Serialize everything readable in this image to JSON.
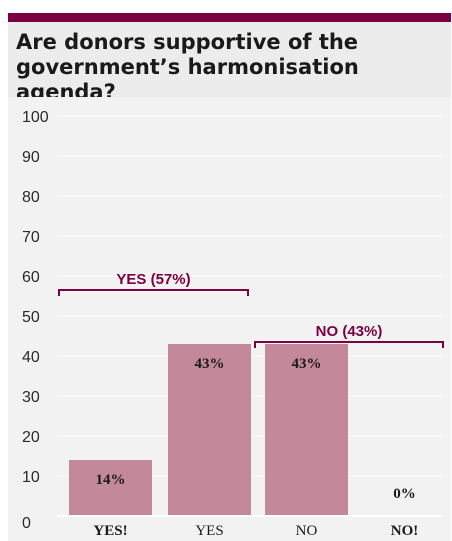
{
  "chart_data": {
    "type": "bar",
    "title": "Are donors supportive of the government’s harmonisation agenda?",
    "categories": [
      "YES!",
      "YES",
      "NO",
      "NO!"
    ],
    "category_bold": [
      true,
      false,
      false,
      true
    ],
    "values": [
      14,
      43,
      43,
      0
    ],
    "value_labels": [
      "14%",
      "43%",
      "43%",
      "0%"
    ],
    "yticks": [
      0,
      10,
      20,
      30,
      40,
      50,
      60,
      70,
      80,
      90,
      100
    ],
    "ylim": [
      0,
      100
    ],
    "grid": true,
    "groups": [
      {
        "label": "YES (57%)",
        "from": 0,
        "to": 1,
        "level": 56
      },
      {
        "label": "NO (43%)",
        "from": 2,
        "to": 3,
        "level": 43
      }
    ],
    "colors": {
      "bar": "#c3889a",
      "accent": "#7a0040",
      "plot_bg": "#f2f2f2",
      "header_bg": "#ececec"
    }
  }
}
